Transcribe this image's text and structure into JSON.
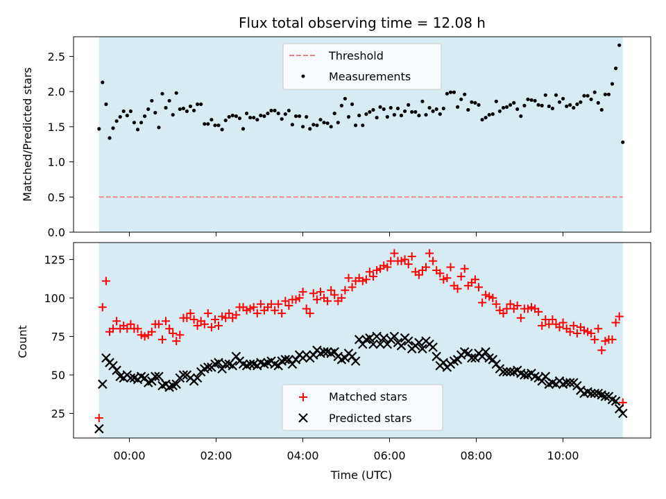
{
  "chart_data": [
    {
      "type": "scatter",
      "title": "Flux total observing time = 12.08 h",
      "xlabel": "",
      "ylabel": "Matched/Predicted stars",
      "ylim": [
        0,
        2.78
      ],
      "yticks": [
        "0.0",
        "0.5",
        "1.0",
        "1.5",
        "2.0",
        "2.5"
      ],
      "x_start_hours": -0.7,
      "x_end_hours": 11.38,
      "series": [
        {
          "name": "Threshold",
          "kind": "dashed-line",
          "color": "#f08080",
          "value": 0.5
        },
        {
          "name": "Measurements",
          "kind": "points",
          "color": "#000000",
          "values": [
            1.47,
            2.13,
            1.82,
            1.34,
            1.48,
            1.58,
            1.64,
            1.72,
            1.66,
            1.72,
            1.56,
            1.46,
            1.56,
            1.65,
            1.75,
            1.87,
            1.7,
            1.49,
            1.97,
            1.77,
            1.87,
            1.67,
            1.98,
            1.75,
            1.76,
            1.72,
            1.79,
            1.73,
            1.82,
            1.82,
            1.54,
            1.54,
            1.6,
            1.52,
            1.52,
            1.46,
            1.59,
            1.64,
            1.66,
            1.65,
            1.62,
            1.47,
            1.69,
            1.63,
            1.63,
            1.6,
            1.66,
            1.65,
            1.69,
            1.73,
            1.73,
            1.69,
            1.61,
            1.68,
            1.73,
            1.53,
            1.65,
            1.65,
            1.5,
            1.64,
            1.47,
            1.53,
            1.52,
            1.6,
            1.56,
            1.55,
            1.5,
            1.69,
            1.56,
            1.8,
            1.9,
            1.64,
            1.82,
            1.52,
            1.66,
            1.52,
            1.68,
            1.71,
            1.74,
            1.63,
            1.78,
            1.75,
            1.64,
            1.77,
            1.67,
            1.76,
            1.66,
            1.72,
            1.81,
            1.71,
            1.71,
            1.66,
            1.86,
            1.67,
            1.77,
            1.72,
            1.75,
            1.68,
            1.76,
            1.97,
            1.99,
            1.99,
            1.78,
            1.89,
            1.96,
            1.74,
            1.85,
            1.84,
            1.81,
            1.6,
            1.63,
            1.67,
            1.68,
            1.86,
            1.72,
            1.77,
            1.78,
            1.81,
            1.84,
            1.75,
            1.65,
            1.8,
            1.89,
            1.88,
            1.87,
            1.81,
            1.8,
            1.95,
            1.79,
            1.76,
            1.95,
            1.85,
            1.9,
            1.79,
            1.81,
            1.77,
            1.82,
            1.85,
            1.94,
            1.94,
            1.89,
            1.99,
            1.84,
            1.74,
            1.96,
            1.96,
            2.11,
            2.33,
            2.66,
            1.28
          ]
        }
      ],
      "legend": "upper center"
    },
    {
      "type": "scatter",
      "title": "",
      "xlabel": "Time (UTC)",
      "ylabel": "Count",
      "ylim": [
        9,
        136
      ],
      "yticks": [
        "25",
        "50",
        "75",
        "100",
        "125"
      ],
      "x_start_hours": -0.7,
      "x_end_hours": 11.38,
      "xticks": [
        "00:00",
        "02:00",
        "04:00",
        "06:00",
        "08:00",
        "10:00"
      ],
      "series": [
        {
          "name": "Matched stars",
          "kind": "plus-markers",
          "color": "#ff0000",
          "values": [
            22,
            94,
            111,
            78,
            80,
            85,
            80,
            82,
            80,
            83,
            80,
            80,
            76,
            75,
            76,
            78,
            83,
            83,
            73,
            85,
            80,
            77,
            72,
            76,
            87,
            87,
            90,
            86,
            82,
            85,
            83,
            90,
            81,
            86,
            82,
            88,
            87,
            90,
            87,
            89,
            94,
            94,
            92,
            93,
            94,
            90,
            96,
            92,
            94,
            96,
            92,
            96,
            90,
            98,
            95,
            99,
            99,
            100,
            104,
            93,
            90,
            103,
            99,
            104,
            100,
            98,
            105,
            102,
            98,
            100,
            105,
            113,
            107,
            111,
            113,
            111,
            112,
            117,
            114,
            118,
            119,
            121,
            120,
            124,
            129,
            124,
            124,
            125,
            122,
            127,
            117,
            115,
            118,
            120,
            129,
            124,
            118,
            116,
            112,
            113,
            120,
            108,
            106,
            114,
            119,
            108,
            110,
            112,
            107,
            97,
            102,
            101,
            100,
            96,
            92,
            90,
            93,
            96,
            93,
            95,
            87,
            93,
            93,
            94,
            93,
            91,
            82,
            86,
            83,
            86,
            83,
            81,
            84,
            80,
            78,
            82,
            77,
            81,
            79,
            78,
            77,
            73,
            80,
            66,
            72,
            73,
            73,
            84,
            88,
            32
          ]
        },
        {
          "name": "Predicted stars",
          "kind": "x-markers",
          "color": "#000000",
          "values": [
            15,
            44,
            61,
            58,
            56,
            53,
            49,
            48,
            50,
            48,
            48,
            47,
            49,
            48,
            45,
            46,
            49,
            49,
            43,
            44,
            42,
            43,
            44,
            48,
            50,
            50,
            48,
            46,
            48,
            52,
            54,
            55,
            55,
            57,
            58,
            54,
            57,
            57,
            56,
            62,
            59,
            57,
            56,
            57,
            57,
            56,
            58,
            57,
            58,
            59,
            57,
            56,
            59,
            60,
            60,
            57,
            60,
            63,
            61,
            63,
            61,
            63,
            66,
            64,
            65,
            65,
            64,
            65,
            62,
            60,
            61,
            64,
            62,
            59,
            73,
            70,
            73,
            74,
            70,
            75,
            70,
            74,
            70,
            73,
            75,
            71,
            69,
            74,
            72,
            67,
            69,
            71,
            67,
            72,
            70,
            68,
            62,
            56,
            58,
            55,
            57,
            59,
            60,
            63,
            65,
            64,
            61,
            61,
            64,
            62,
            65,
            61,
            60,
            57,
            54,
            52,
            52,
            52,
            52,
            53,
            51,
            50,
            50,
            51,
            49,
            48,
            46,
            49,
            44,
            45,
            44,
            46,
            44,
            45,
            45,
            45,
            43,
            40,
            38,
            39,
            38,
            38,
            38,
            37,
            36,
            36,
            34,
            33,
            28,
            25
          ]
        }
      ],
      "legend": "lower center"
    }
  ]
}
